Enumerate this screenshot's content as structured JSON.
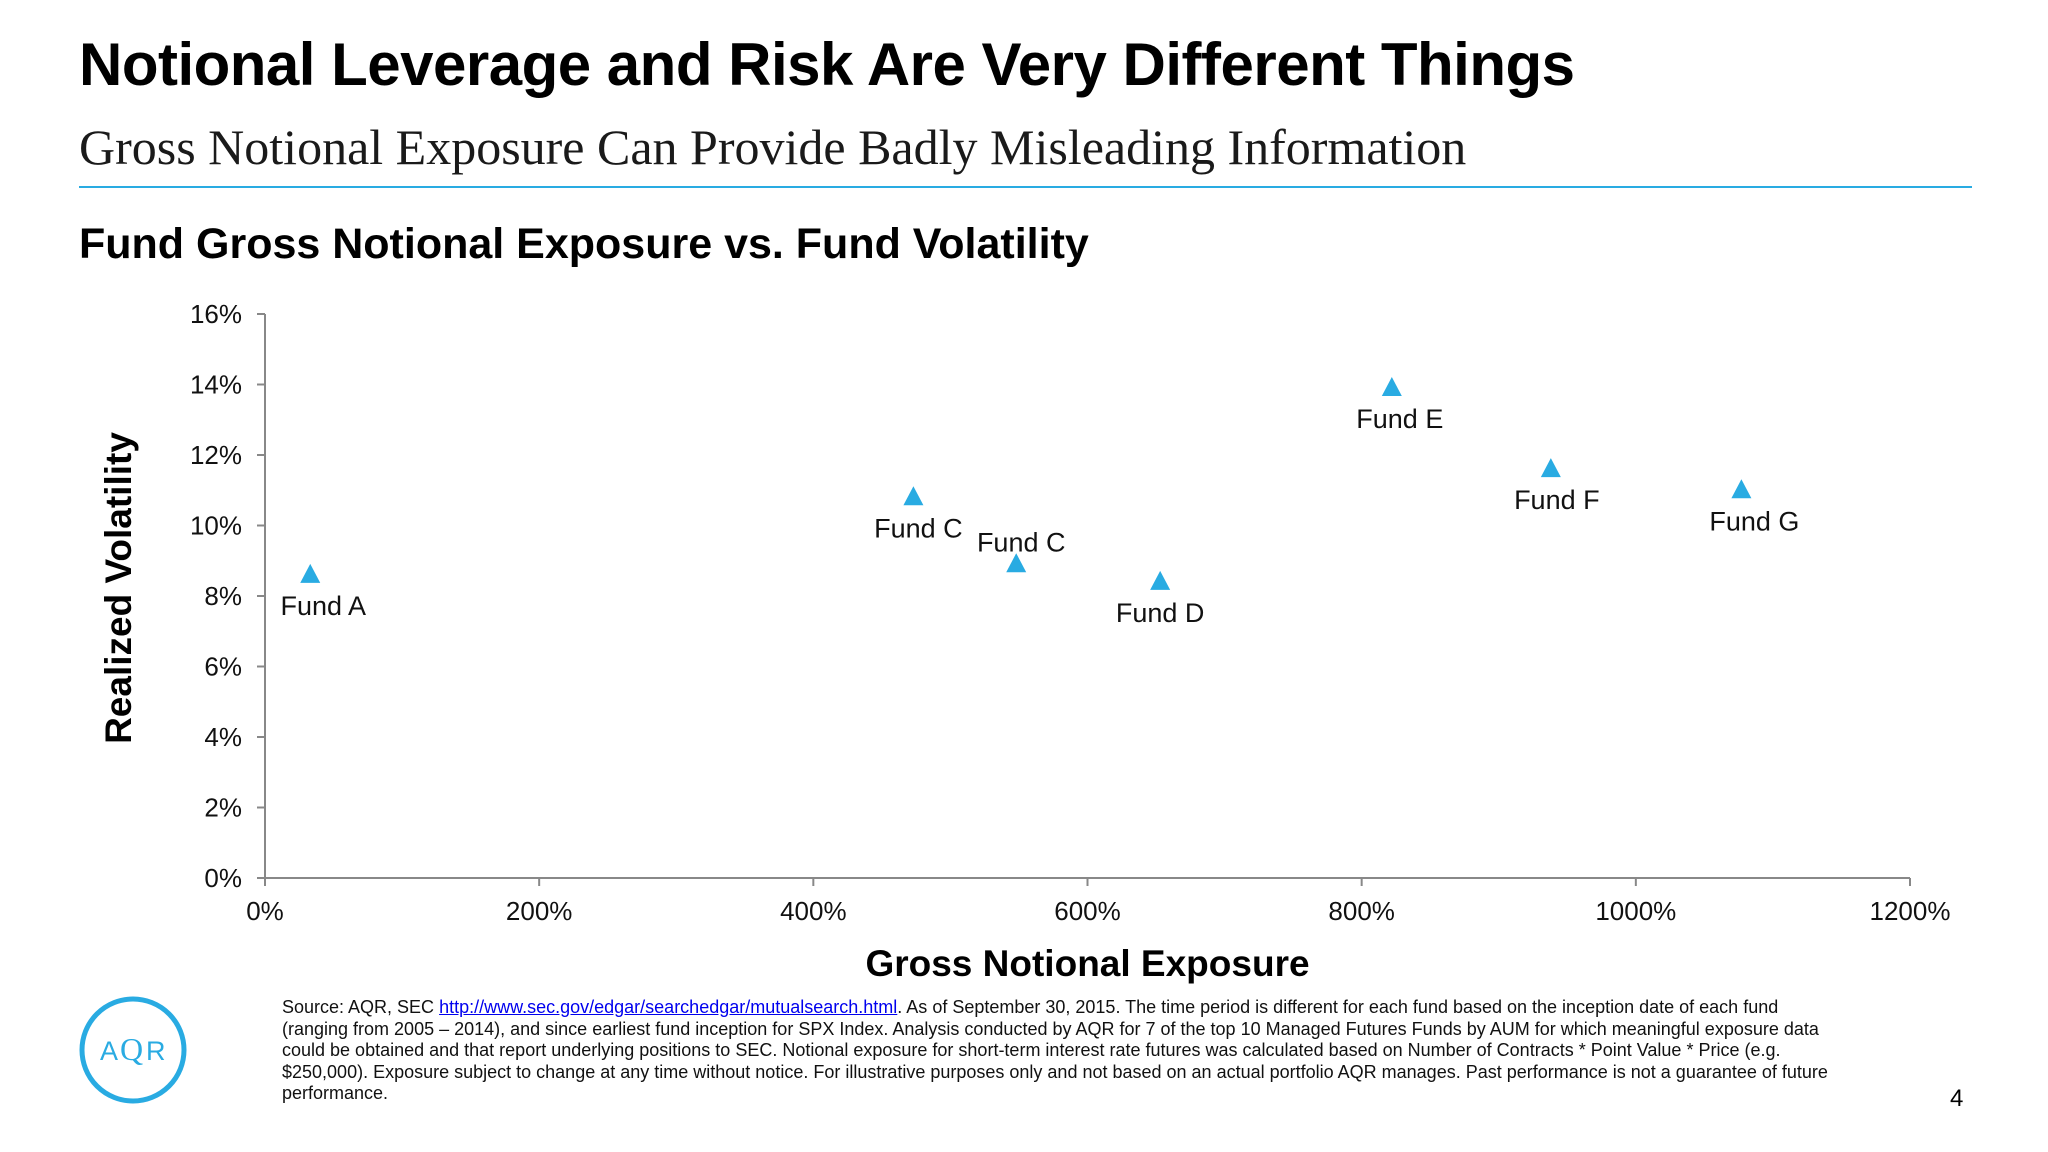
{
  "slide": {
    "title": "Notional Leverage and Risk Are Very Different Things",
    "subtitle": "Gross Notional Exposure Can Provide Badly Misleading Information",
    "page_number": "4",
    "accent_color": "#29abe2"
  },
  "logo": {
    "text_a": "A",
    "text_q": "Q",
    "text_r": "R",
    "color": "#29abe2"
  },
  "footnote": {
    "prefix": "Source: AQR, SEC ",
    "link": "http://www.sec.gov/edgar/searchedgar/mutualsearch.html",
    "suffix": ". As of September 30, 2015. The time period is different for each fund based on the inception date of each fund (ranging from 2005 – 2014), and since earliest fund inception for SPX Index. Analysis conducted by AQR for 7 of the top 10 Managed Futures Funds by AUM for which meaningful exposure data could be obtained and that report underlying positions to SEC. Notional exposure for short-term interest rate futures was calculated based on Number of Contracts * Point Value * Price (e.g. $250,000). Exposure subject to change at any time without notice. For illustrative purposes only and not based on an actual portfolio AQR manages. Past performance is not a guarantee of future performance."
  },
  "chart_data": {
    "type": "scatter",
    "title": "Fund Gross Notional Exposure vs. Fund Volatility",
    "xlabel": "Gross Notional Exposure",
    "ylabel": "Realized Volatility",
    "xlim": [
      0,
      1200
    ],
    "ylim": [
      0,
      16
    ],
    "x_ticks": [
      0,
      200,
      400,
      600,
      800,
      1000,
      1200
    ],
    "x_tick_labels": [
      "0%",
      "200%",
      "400%",
      "600%",
      "800%",
      "1000%",
      "1200%"
    ],
    "y_ticks": [
      0,
      2,
      4,
      6,
      8,
      10,
      12,
      14,
      16
    ],
    "y_tick_labels": [
      "0%",
      "2%",
      "4%",
      "6%",
      "8%",
      "10%",
      "12%",
      "14%",
      "16%"
    ],
    "grid": false,
    "marker": "triangle",
    "marker_color": "#29abe2",
    "points": [
      {
        "label": "Fund A",
        "x": 33,
        "y": 8.6
      },
      {
        "label": "Fund C",
        "x": 473,
        "y": 10.8
      },
      {
        "label": "Fund C",
        "x": 548,
        "y": 8.9
      },
      {
        "label": "Fund D",
        "x": 653,
        "y": 8.4
      },
      {
        "label": "Fund E",
        "x": 822,
        "y": 13.9
      },
      {
        "label": "Fund F",
        "x": 938,
        "y": 11.6
      },
      {
        "label": "Fund G",
        "x": 1077,
        "y": 11.0
      }
    ]
  }
}
